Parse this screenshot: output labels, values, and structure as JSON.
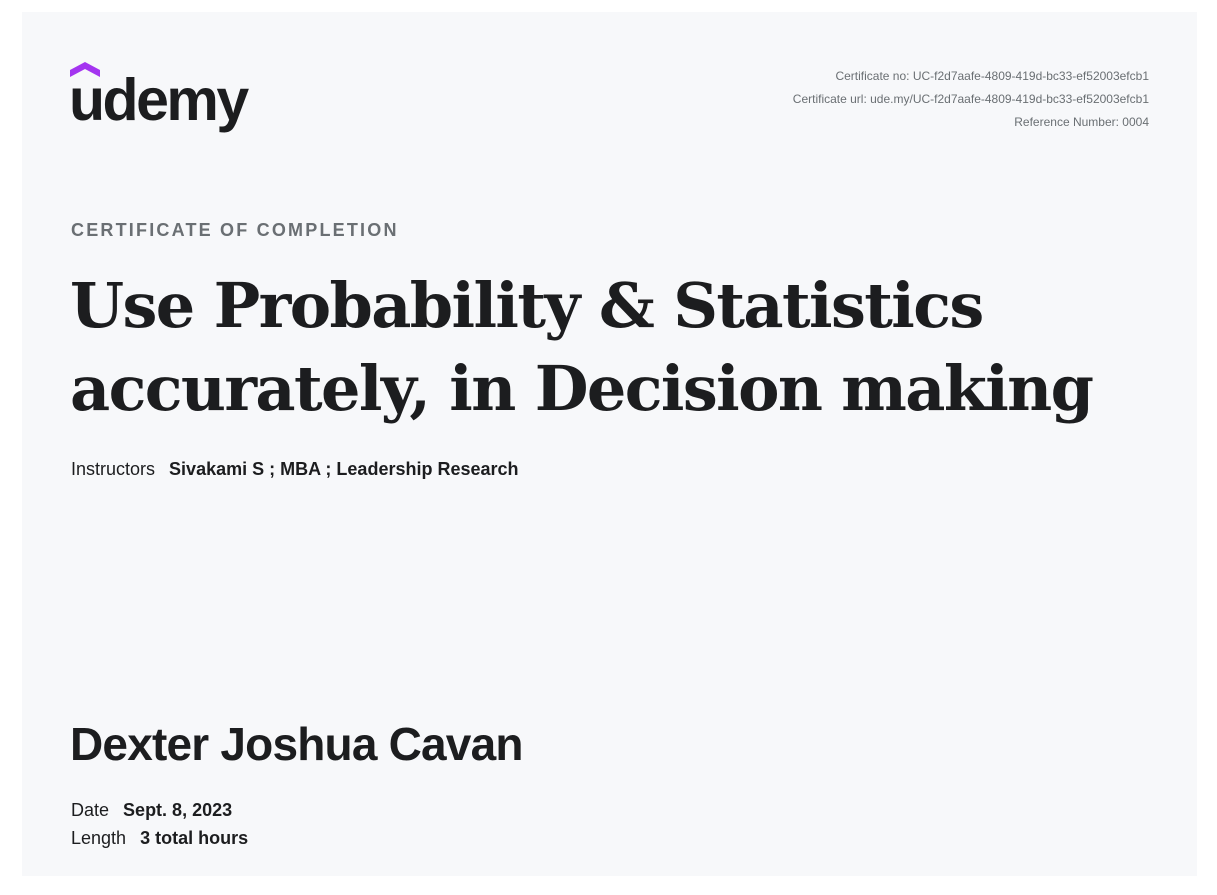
{
  "brand": {
    "name": "udemy",
    "accent_color": "#a435f0",
    "text_color": "#1c1d1f"
  },
  "meta": {
    "certificate_no": "Certificate no: UC-f2d7aafe-4809-419d-bc33-ef52003efcb1",
    "certificate_url": "Certificate url: ude.my/UC-f2d7aafe-4809-419d-bc33-ef52003efcb1",
    "reference_number": "Reference Number: 0004"
  },
  "certificate": {
    "eyebrow": "CERTIFICATE OF COMPLETION",
    "course_title": "Use Probability & Statistics accurately, in Decision making",
    "instructors_label": "Instructors",
    "instructors_value": "Sivakami S ; MBA ; Leadership Research",
    "recipient_name": "Dexter Joshua Cavan",
    "date_label": "Date",
    "date_value": "Sept. 8, 2023",
    "length_label": "Length",
    "length_value": "3 total hours"
  }
}
